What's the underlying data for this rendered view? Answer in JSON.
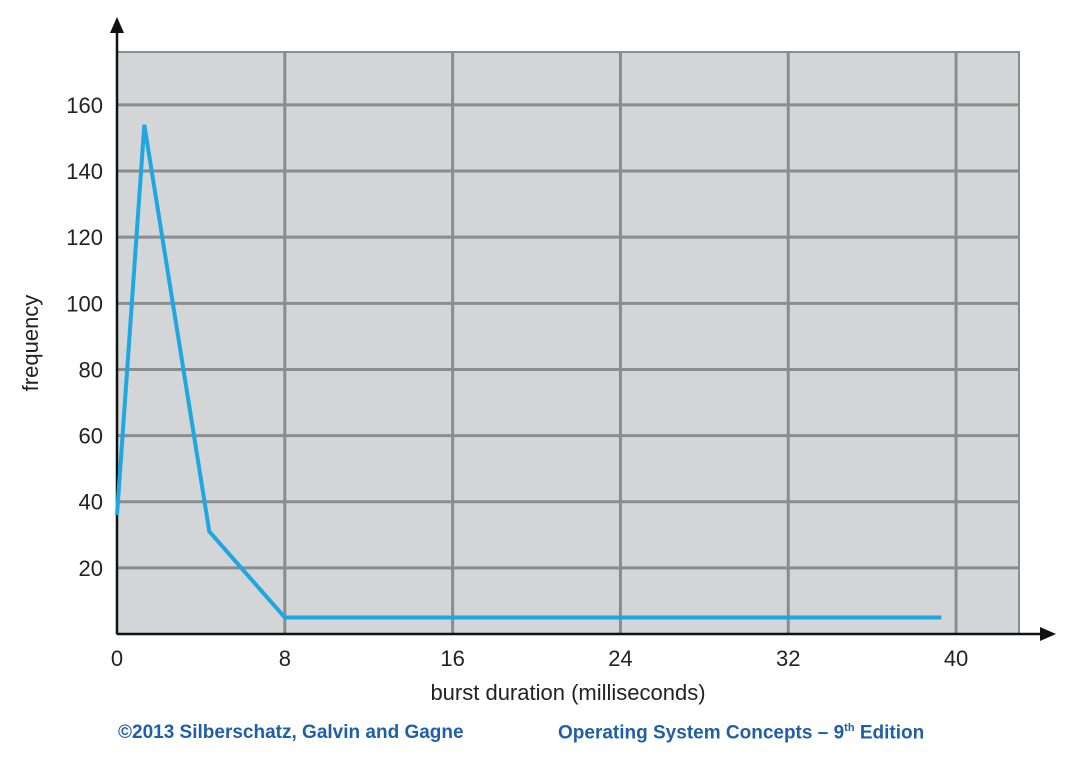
{
  "chart_data": {
    "type": "line",
    "xlabel": "burst duration (milliseconds)",
    "ylabel": "frequency",
    "x_ticks": [
      0,
      8,
      16,
      24,
      32,
      40
    ],
    "y_ticks": [
      20,
      40,
      60,
      80,
      100,
      120,
      140,
      160
    ],
    "xlim": [
      0,
      43
    ],
    "ylim": [
      0,
      176
    ],
    "grid": true,
    "series": [
      {
        "x": [
          0,
          1.3,
          4.4,
          8,
          39.3
        ],
        "y": [
          36,
          154,
          31,
          5,
          5
        ]
      }
    ],
    "colors": {
      "plot_background": "#d3d5d7",
      "grid": "#8a8c8e",
      "line": "#1ea7e1",
      "axis": "#111111"
    }
  },
  "footer": {
    "copyright": "©2013  Silberschatz, Galvin and Gagne",
    "book_prefix": "Operating System Concepts – 9",
    "book_sup": "th",
    "book_suffix": " Edition",
    "color": "#1f5fa8"
  }
}
